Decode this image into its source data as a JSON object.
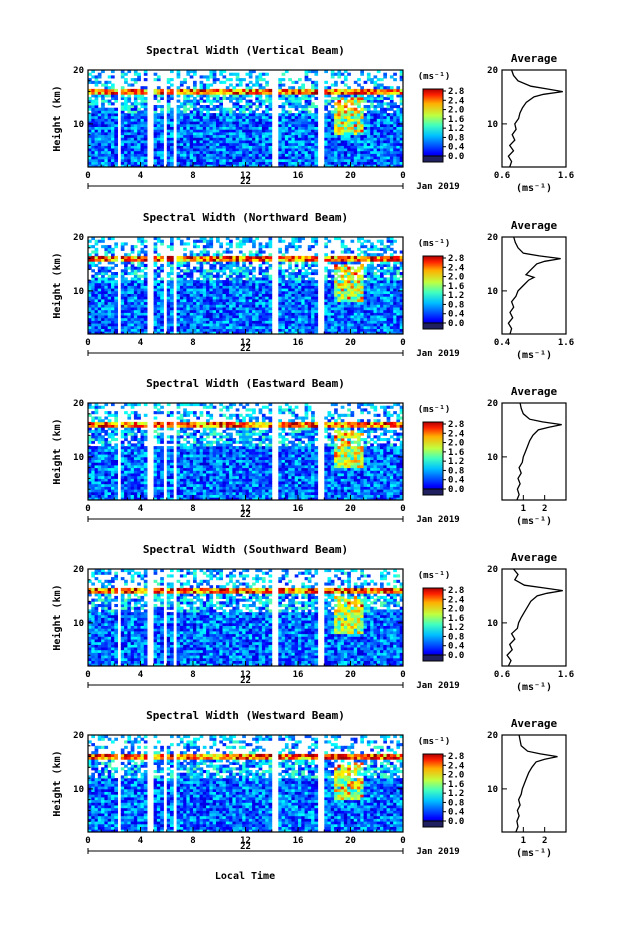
{
  "figure": {
    "date_label": "Jan 2019",
    "day_label": "22",
    "xlabel": "Local Time"
  },
  "chart_data": [
    {
      "type": "heatmap",
      "title": "Spectral Width (Vertical Beam)",
      "ylabel": "Height (km)",
      "xlim": [
        0,
        24
      ],
      "ylim": [
        2,
        20
      ],
      "xticks": [
        "0",
        "4",
        "8",
        "12",
        "16",
        "20",
        "0"
      ],
      "yticks": [
        "10",
        "20"
      ],
      "colorbar": {
        "unit": "(ms⁻¹)",
        "ticks": [
          "0.0",
          "0.4",
          "0.8",
          "1.2",
          "1.6",
          "2.0",
          "2.4",
          "2.8"
        ],
        "range": [
          0,
          2.8
        ]
      },
      "data_gaps_hours": [
        [
          2.2,
          2.6
        ],
        [
          4.6,
          4.9
        ],
        [
          5.7,
          6.0
        ],
        [
          6.4,
          6.7
        ],
        [
          14.0,
          14.5
        ],
        [
          17.6,
          17.9
        ]
      ],
      "average_profile": {
        "title": "Average",
        "xlabel": "(ms⁻¹)",
        "xlim": [
          0.6,
          1.6
        ],
        "xticks": [
          "0.6",
          "1.6"
        ],
        "ylim": [
          2,
          20
        ],
        "yticks": [
          "10",
          "20"
        ],
        "height_km": [
          2,
          3,
          4,
          5,
          6,
          7,
          8,
          9,
          10,
          11,
          12,
          13,
          14,
          15,
          15.5,
          16,
          16.5,
          17,
          18,
          19,
          20
        ],
        "width": [
          0.72,
          0.75,
          0.7,
          0.78,
          0.72,
          0.8,
          0.76,
          0.82,
          0.8,
          0.86,
          0.88,
          0.92,
          0.98,
          1.1,
          1.25,
          1.55,
          1.3,
          1.05,
          0.85,
          0.78,
          0.75
        ]
      }
    },
    {
      "type": "heatmap",
      "title": "Spectral Width (Northward Beam)",
      "ylabel": "Height (km)",
      "xlim": [
        0,
        24
      ],
      "ylim": [
        2,
        20
      ],
      "xticks": [
        "0",
        "4",
        "8",
        "12",
        "16",
        "20",
        "0"
      ],
      "yticks": [
        "10",
        "20"
      ],
      "colorbar": {
        "unit": "(ms⁻¹)",
        "ticks": [
          "0.0",
          "0.4",
          "0.8",
          "1.2",
          "1.6",
          "2.0",
          "2.4",
          "2.8"
        ],
        "range": [
          0,
          2.8
        ]
      },
      "data_gaps_hours": [
        [
          2.2,
          2.6
        ],
        [
          4.6,
          4.9
        ],
        [
          5.7,
          6.0
        ],
        [
          6.4,
          6.7
        ],
        [
          14.0,
          14.5
        ],
        [
          17.6,
          17.9
        ]
      ],
      "average_profile": {
        "title": "Average",
        "xlabel": "(ms⁻¹)",
        "xlim": [
          0.4,
          1.6
        ],
        "xticks": [
          "0.4",
          "1.6"
        ],
        "ylim": [
          2,
          20
        ],
        "yticks": [
          "10",
          "20"
        ],
        "height_km": [
          2,
          3,
          4,
          5,
          6,
          7,
          8,
          9,
          10,
          11,
          12,
          12.5,
          13,
          14,
          15,
          15.5,
          16,
          16.5,
          17,
          18,
          19,
          20
        ],
        "width": [
          0.55,
          0.58,
          0.52,
          0.6,
          0.55,
          0.62,
          0.58,
          0.66,
          0.7,
          0.8,
          0.9,
          1.0,
          0.85,
          0.95,
          1.05,
          1.2,
          1.5,
          1.1,
          0.8,
          0.7,
          0.65,
          0.62
        ]
      }
    },
    {
      "type": "heatmap",
      "title": "Spectral Width (Eastward Beam)",
      "ylabel": "Height (km)",
      "xlim": [
        0,
        24
      ],
      "ylim": [
        2,
        20
      ],
      "xticks": [
        "0",
        "4",
        "8",
        "12",
        "16",
        "20",
        "0"
      ],
      "yticks": [
        "10",
        "20"
      ],
      "colorbar": {
        "unit": "(ms⁻¹)",
        "ticks": [
          "0.0",
          "0.4",
          "0.8",
          "1.2",
          "1.6",
          "2.0",
          "2.4",
          "2.8"
        ],
        "range": [
          0,
          2.8
        ]
      },
      "data_gaps_hours": [
        [
          2.2,
          2.6
        ],
        [
          4.6,
          4.9
        ],
        [
          5.7,
          6.0
        ],
        [
          6.4,
          6.7
        ],
        [
          14.0,
          14.5
        ],
        [
          17.6,
          17.9
        ]
      ],
      "average_profile": {
        "title": "Average",
        "xlabel": "(ms⁻¹)",
        "xlim": [
          0,
          3
        ],
        "xticks": [
          "1",
          "2"
        ],
        "ylim": [
          2,
          20
        ],
        "yticks": [
          "10",
          "20"
        ],
        "height_km": [
          2,
          3,
          4,
          5,
          6,
          7,
          8,
          9,
          10,
          11,
          12,
          13,
          14,
          15,
          15.5,
          16,
          16.5,
          17,
          18,
          19,
          20
        ],
        "width": [
          0.7,
          0.8,
          0.72,
          0.85,
          0.75,
          0.9,
          0.8,
          0.95,
          1.0,
          1.1,
          1.2,
          1.3,
          1.45,
          1.7,
          2.2,
          2.8,
          1.9,
          1.3,
          1.0,
          0.9,
          0.85
        ]
      }
    },
    {
      "type": "heatmap",
      "title": "Spectral Width (Southward Beam)",
      "ylabel": "Height (km)",
      "xlim": [
        0,
        24
      ],
      "ylim": [
        2,
        20
      ],
      "xticks": [
        "0",
        "4",
        "8",
        "12",
        "16",
        "20",
        "0"
      ],
      "yticks": [
        "10",
        "20"
      ],
      "colorbar": {
        "unit": "(ms⁻¹)",
        "ticks": [
          "0.0",
          "0.4",
          "0.8",
          "1.2",
          "1.6",
          "2.0",
          "2.4",
          "2.8"
        ],
        "range": [
          0,
          2.8
        ]
      },
      "data_gaps_hours": [
        [
          2.2,
          2.6
        ],
        [
          4.6,
          4.9
        ],
        [
          5.7,
          6.0
        ],
        [
          6.4,
          6.7
        ],
        [
          14.0,
          14.5
        ],
        [
          17.6,
          17.9
        ]
      ],
      "average_profile": {
        "title": "Average",
        "xlabel": "(ms⁻¹)",
        "xlim": [
          0.6,
          1.6
        ],
        "xticks": [
          "0.6",
          "1.6"
        ],
        "ylim": [
          2,
          20
        ],
        "yticks": [
          "10",
          "20"
        ],
        "height_km": [
          2,
          3,
          4,
          5,
          6,
          7,
          8,
          9,
          10,
          11,
          12,
          13,
          14,
          15,
          15.5,
          16,
          16.5,
          17,
          18,
          19,
          20
        ],
        "width": [
          0.7,
          0.74,
          0.68,
          0.76,
          0.72,
          0.8,
          0.75,
          0.84,
          0.86,
          0.9,
          0.95,
          1.0,
          1.05,
          1.15,
          1.3,
          1.55,
          1.25,
          0.95,
          0.8,
          0.85,
          0.78
        ]
      }
    },
    {
      "type": "heatmap",
      "title": "Spectral Width (Westward Beam)",
      "ylabel": "Height (km)",
      "xlim": [
        0,
        24
      ],
      "ylim": [
        2,
        20
      ],
      "xticks": [
        "0",
        "4",
        "8",
        "12",
        "16",
        "20",
        "0"
      ],
      "yticks": [
        "10",
        "20"
      ],
      "colorbar": {
        "unit": "(ms⁻¹)",
        "ticks": [
          "0.0",
          "0.4",
          "0.8",
          "1.2",
          "1.6",
          "2.0",
          "2.4",
          "2.8"
        ],
        "range": [
          0,
          2.8
        ]
      },
      "data_gaps_hours": [
        [
          2.2,
          2.6
        ],
        [
          4.6,
          4.9
        ],
        [
          5.7,
          6.0
        ],
        [
          6.4,
          6.7
        ],
        [
          14.0,
          14.5
        ],
        [
          17.6,
          17.9
        ]
      ],
      "average_profile": {
        "title": "Average",
        "xlabel": "(ms⁻¹)",
        "xlim": [
          0,
          3
        ],
        "xticks": [
          "1",
          "2"
        ],
        "ylim": [
          2,
          20
        ],
        "yticks": [
          "10",
          "20"
        ],
        "height_km": [
          2,
          3,
          4,
          5,
          6,
          7,
          8,
          9,
          10,
          11,
          12,
          13,
          14,
          15,
          15.5,
          16,
          16.5,
          17,
          18,
          19,
          20
        ],
        "width": [
          0.65,
          0.75,
          0.7,
          0.8,
          0.72,
          0.85,
          0.78,
          0.9,
          0.95,
          1.05,
          1.15,
          1.25,
          1.4,
          1.6,
          2.0,
          2.6,
          1.8,
          1.2,
          0.9,
          0.85,
          0.8
        ]
      }
    }
  ]
}
